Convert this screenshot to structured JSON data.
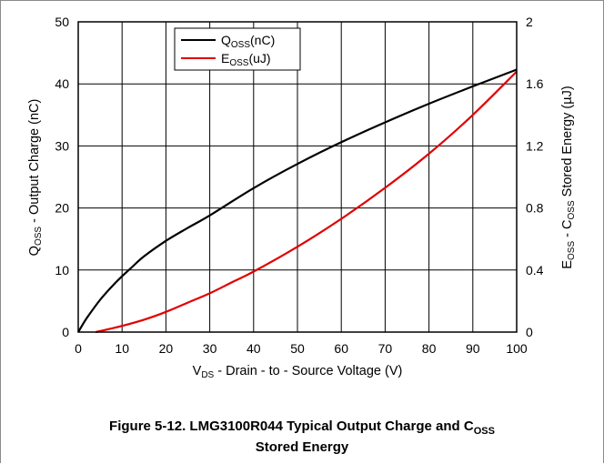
{
  "figure": {
    "caption_line1_prefix": "Figure 5-12. LMG3100R044 Typical Output Charge and C",
    "caption_line1_sub": "OSS",
    "caption_line2": "Stored Energy"
  },
  "chart_data": {
    "type": "line",
    "title": "",
    "xlabel": {
      "main": "V",
      "sub": "DS",
      "rest": " - Drain - to - Source Voltage (V)"
    },
    "ylabel": {
      "main": "Q",
      "sub": "OSS",
      "rest": " - Output Charge (nC)"
    },
    "y2label": {
      "part1": "E",
      "sub1": "OSS",
      "part2": " - C",
      "sub2": "OSS",
      "part3": " Stored Energy (µJ)"
    },
    "xlim": [
      0,
      100
    ],
    "ylim": [
      0,
      50
    ],
    "y2lim": [
      0,
      2
    ],
    "xticks": [
      0,
      10,
      20,
      30,
      40,
      50,
      60,
      70,
      80,
      90,
      100
    ],
    "yticks": [
      0,
      10,
      20,
      30,
      40,
      50
    ],
    "y2ticks": [
      "0",
      "0.4",
      "0.8",
      "1.2",
      "1.6",
      "2"
    ],
    "grid": true,
    "legend": "top-center",
    "series": [
      {
        "name": {
          "main": "Q",
          "sub": "OSS",
          "rest": "(nC)"
        },
        "color": "#000000",
        "axis": "left",
        "x": [
          0,
          2,
          5,
          8,
          10,
          12,
          15,
          20,
          25,
          30,
          40,
          50,
          60,
          70,
          80,
          90,
          100
        ],
        "y": [
          0,
          2.3,
          5.2,
          7.6,
          9.0,
          10.3,
          12.2,
          14.7,
          16.8,
          18.8,
          23.2,
          27.1,
          30.6,
          33.8,
          36.8,
          39.6,
          42.3
        ]
      },
      {
        "name": {
          "main": "E",
          "sub": "OSS",
          "rest": "(uJ)"
        },
        "color": "#e00000",
        "axis": "right",
        "x": [
          4,
          10,
          15,
          20,
          25,
          30,
          35,
          40,
          50,
          60,
          70,
          80,
          90,
          100
        ],
        "y": [
          0.0,
          0.04,
          0.08,
          0.13,
          0.19,
          0.25,
          0.32,
          0.39,
          0.55,
          0.73,
          0.93,
          1.15,
          1.4,
          1.68
        ]
      }
    ]
  }
}
